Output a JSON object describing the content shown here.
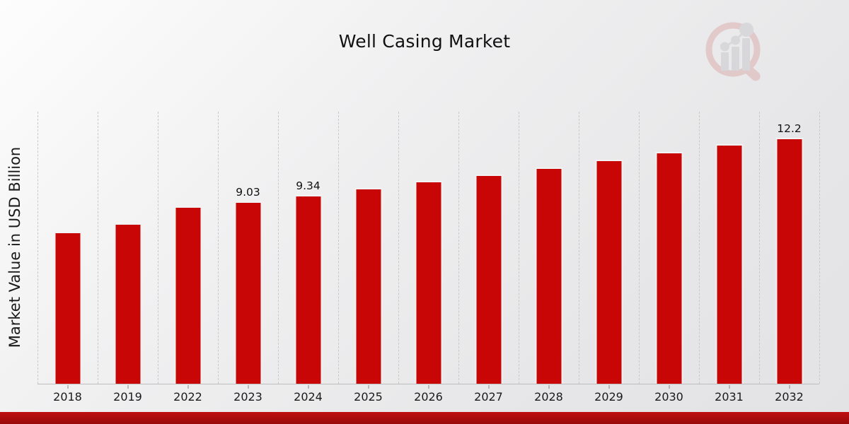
{
  "page": {
    "title": "Well Casing Market"
  },
  "watermark": {
    "name": "magnifier-bar-chart-logo"
  },
  "chart_data": {
    "type": "bar",
    "title": "Well Casing Market",
    "xlabel": "",
    "ylabel": "Market Value in USD Billion",
    "categories": [
      "2018",
      "2019",
      "2022",
      "2023",
      "2024",
      "2025",
      "2026",
      "2027",
      "2028",
      "2029",
      "2030",
      "2031",
      "2032"
    ],
    "values": [
      7.52,
      7.94,
      8.79,
      9.03,
      9.34,
      9.7,
      10.05,
      10.37,
      10.72,
      11.11,
      11.49,
      11.88,
      12.2
    ],
    "bar_labels": [
      "",
      "",
      "",
      "9.03",
      "9.34",
      "",
      "",
      "",
      "",
      "",
      "",
      "",
      "12.2"
    ],
    "ylim": [
      0,
      13.6
    ],
    "grid": "vertical-dashed",
    "legend_position": "none",
    "bar_color": "#c80606",
    "bar_edge_color": "#f2f2f2",
    "gridline_color": "#c9c9cb",
    "axis_color": "#bdbdbd"
  },
  "footer": {
    "accent_color_top": "#c01010",
    "accent_color_bottom": "#980a0a"
  }
}
